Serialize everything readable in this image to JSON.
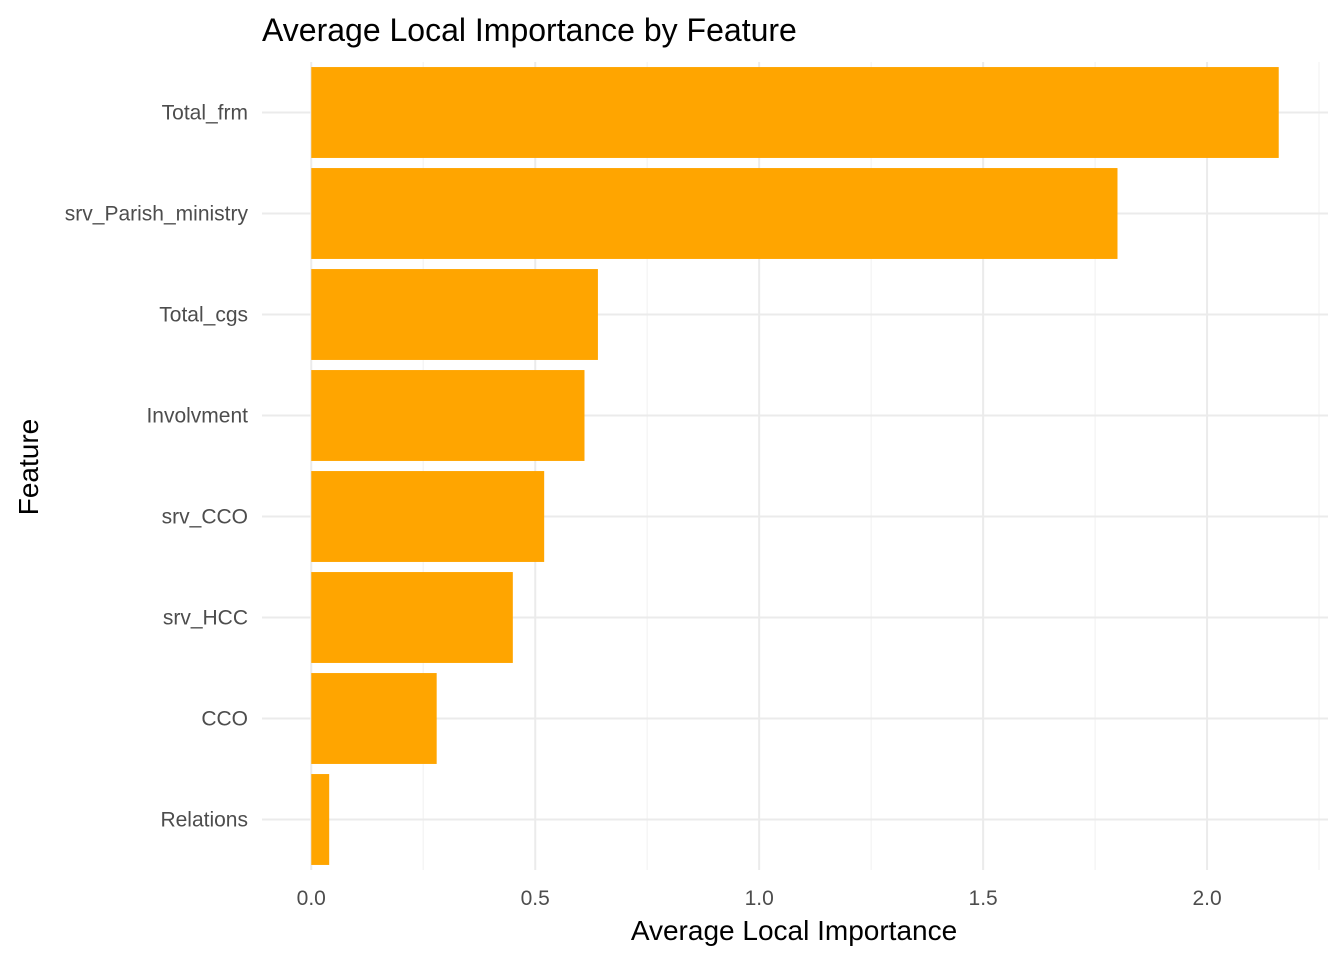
{
  "chart_data": {
    "type": "bar",
    "orientation": "horizontal",
    "title": "Average Local Importance by Feature",
    "xlabel": "Average Local Importance",
    "ylabel": "Feature",
    "categories": [
      "Total_frm",
      "srv_Parish_ministry",
      "Total_cgs",
      "Involvment",
      "srv_CCO",
      "srv_HCC",
      "CCO",
      "Relations"
    ],
    "values": [
      2.16,
      1.8,
      0.64,
      0.61,
      0.52,
      0.45,
      0.28,
      0.04
    ],
    "xlim": [
      -0.11,
      2.27
    ],
    "x_ticks": [
      0.0,
      0.5,
      1.0,
      1.5,
      2.0
    ],
    "x_tick_labels": [
      "0.0",
      "0.5",
      "1.0",
      "1.5",
      "2.0"
    ],
    "bar_color": "#FFA500",
    "grid": true,
    "legend": "none"
  }
}
